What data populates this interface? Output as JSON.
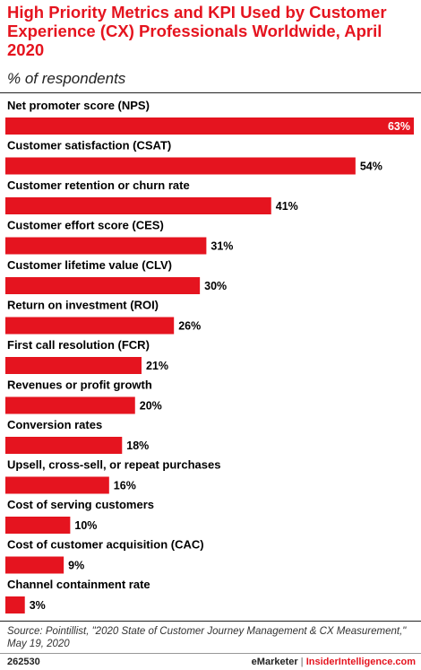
{
  "chart_data": {
    "type": "bar",
    "orientation": "horizontal",
    "title": "High Priority Metrics and KPI Used by Customer Experience (CX) Professionals Worldwide, April 2020",
    "subtitle": "% of respondents",
    "categories": [
      "Net promoter score (NPS)",
      "Customer satisfaction (CSAT)",
      "Customer retention or churn rate",
      "Customer effort score (CES)",
      "Customer lifetime value (CLV)",
      "Return on investment (ROI)",
      "First call resolution (FCR)",
      "Revenues or profit growth",
      "Conversion rates",
      "Upsell, cross-sell, or repeat purchases",
      "Cost of serving customers",
      "Cost of customer acquisition (CAC)",
      "Channel containment rate"
    ],
    "values": [
      63,
      54,
      41,
      31,
      30,
      26,
      21,
      20,
      18,
      16,
      10,
      9,
      3
    ],
    "value_labels": [
      "63%",
      "54%",
      "41%",
      "31%",
      "30%",
      "26%",
      "21%",
      "20%",
      "18%",
      "16%",
      "10%",
      "9%",
      "3%"
    ],
    "xlim": [
      0,
      63
    ],
    "bar_color": "#e5141f",
    "grid": false,
    "legend": "none"
  },
  "source": "Source: Pointillist, \"2020 State of Customer Journey Management & CX Measurement,\" May 19, 2020",
  "footer": {
    "chart_id": "262530",
    "brand": "eMarketer",
    "separator": "|",
    "brand2": "InsiderIntelligence.com"
  }
}
